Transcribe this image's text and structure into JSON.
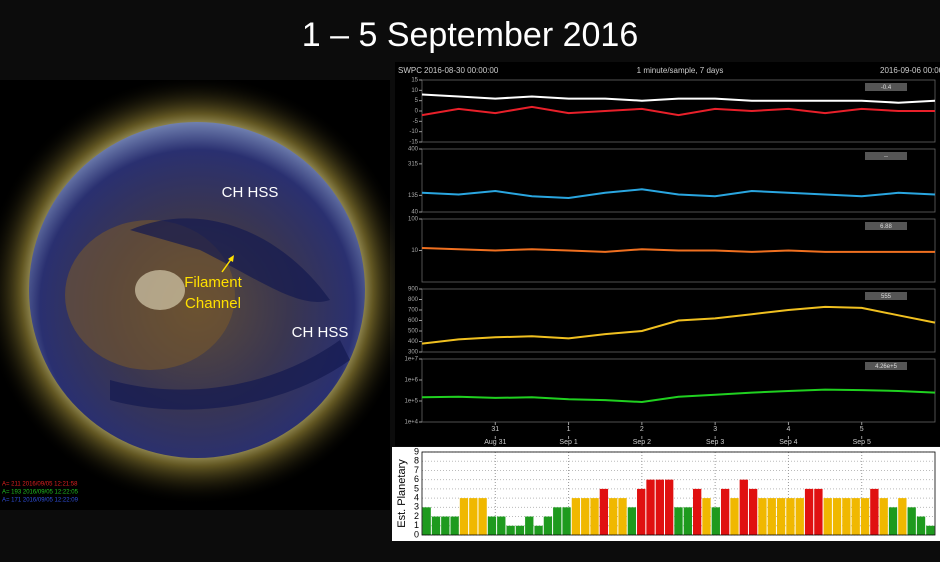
{
  "title": "1 – 5 September 2016",
  "image": {
    "labels": [
      {
        "lines": [
          "CH HSS"
        ],
        "color": "#ffffff"
      },
      {
        "lines": [
          "Filament",
          "Channel"
        ],
        "color": "#ffe000"
      },
      {
        "lines": [
          "CH HSS"
        ],
        "color": "#ffffff"
      }
    ],
    "legend": [
      {
        "text": "A= 211 2016/09/05 12:21:58",
        "color": "#e02020"
      },
      {
        "text": "A= 193 2016/09/05 12:22:05",
        "color": "#20c020"
      },
      {
        "text": "A= 171 2016/09/05 12:22:09",
        "color": "#3050e0"
      }
    ]
  },
  "chart_data": [
    {
      "type": "line",
      "source": "SWPC",
      "start": "2016-08-30 00:00:00",
      "subtitle": "1 minute/sample, 7 days",
      "end": "2016-09-06 00:00:0",
      "x": [
        0,
        0.5,
        1,
        1.5,
        2,
        2.5,
        3,
        3.5,
        4,
        4.5,
        5,
        5.5,
        6,
        6.5,
        7
      ],
      "xlim": [
        0,
        7
      ],
      "xticks": [
        {
          "value": 1,
          "label": "31"
        },
        {
          "value": 2,
          "label": "1"
        },
        {
          "value": 3,
          "label": "2"
        },
        {
          "value": 4,
          "label": "3"
        },
        {
          "value": 5,
          "label": "4"
        },
        {
          "value": 6,
          "label": "5"
        }
      ],
      "xdates": [
        {
          "value": 1,
          "label": "Aug 31"
        },
        {
          "value": 2,
          "label": "Sep 1"
        },
        {
          "value": 3,
          "label": "Sep 2"
        },
        {
          "value": 4,
          "label": "Sep 3"
        },
        {
          "value": 5,
          "label": "Sep 4"
        },
        {
          "value": 6,
          "label": "Sep 5"
        }
      ],
      "panels": [
        {
          "ylim": [
            -15,
            15
          ],
          "yticks": [
            15,
            10,
            5,
            0,
            -5,
            -10,
            -15
          ],
          "log": false,
          "tag": "-0.4",
          "series": [
            {
              "color": "#ffffff",
              "values": [
                8,
                7,
                6,
                7,
                6,
                6,
                5,
                6,
                6,
                5,
                5,
                5,
                5,
                4,
                5
              ]
            },
            {
              "color": "#e8202a",
              "values": [
                -2,
                1,
                -1,
                2,
                -1,
                0,
                1,
                -2,
                1,
                0,
                1,
                -1,
                1,
                0,
                0
              ]
            }
          ]
        },
        {
          "ylim": [
            40,
            400
          ],
          "yticks": [
            400,
            315,
            135,
            40
          ],
          "log": false,
          "tag": "--",
          "series": [
            {
              "color": "#2aa6e0",
              "values": [
                150,
                140,
                160,
                130,
                120,
                150,
                170,
                140,
                130,
                160,
                150,
                140,
                130,
                150,
                140
              ]
            }
          ]
        },
        {
          "ylim": [
            1,
            100
          ],
          "yticks": [
            100,
            10
          ],
          "log": true,
          "tag": "6.88",
          "series": [
            {
              "color": "#f07020",
              "values": [
                12,
                11,
                10,
                11,
                10,
                9,
                11,
                10,
                10,
                9,
                10,
                9,
                9,
                9,
                9
              ]
            }
          ]
        },
        {
          "ylim": [
            300,
            900
          ],
          "yticks": [
            900,
            800,
            700,
            600,
            500,
            400,
            300
          ],
          "log": false,
          "tag": "555",
          "series": [
            {
              "color": "#f0c020",
              "values": [
                380,
                420,
                440,
                450,
                430,
                470,
                500,
                600,
                620,
                660,
                700,
                730,
                720,
                650,
                580
              ]
            }
          ]
        },
        {
          "ylim": [
            10000,
            10000000
          ],
          "yticks": [
            {
              "value": 10000000,
              "label": "1e+7"
            },
            {
              "value": 1000000,
              "label": "1e+6"
            },
            {
              "value": 100000,
              "label": "1e+5"
            },
            {
              "value": 10000,
              "label": "1e+4"
            }
          ],
          "log": true,
          "tag": "4.26e+5",
          "series": [
            {
              "color": "#20d020",
              "values": [
                150000,
                160000,
                140000,
                150000,
                120000,
                110000,
                90000,
                160000,
                200000,
                250000,
                300000,
                350000,
                330000,
                300000,
                250000
              ]
            }
          ]
        }
      ]
    },
    {
      "type": "bar",
      "ylabel": "Est. Planetary",
      "ylim": [
        0,
        9
      ],
      "yticks": [
        0,
        1,
        2,
        3,
        4,
        5,
        6,
        7,
        8,
        9
      ],
      "xlim": [
        0,
        7
      ],
      "xticks": [
        1,
        2,
        3,
        4,
        5,
        6
      ],
      "values": [
        3,
        2,
        2,
        2,
        4,
        4,
        4,
        2,
        2,
        1,
        1,
        2,
        1,
        2,
        3,
        3,
        4,
        4,
        4,
        5,
        4,
        4,
        3,
        5,
        6,
        6,
        6,
        3,
        3,
        5,
        4,
        3,
        5,
        4,
        6,
        5,
        4,
        4,
        4,
        4,
        4,
        5,
        5,
        4,
        4,
        4,
        4,
        4,
        5,
        4,
        3,
        4,
        3,
        2,
        1
      ],
      "bar_colors": [
        "#1e9a1e",
        "#1e9a1e",
        "#1e9a1e",
        "#1e9a1e",
        "#f0b800",
        "#e01010",
        "#e01010",
        "#e01010",
        "#e01010",
        "#e01010"
      ]
    }
  ]
}
